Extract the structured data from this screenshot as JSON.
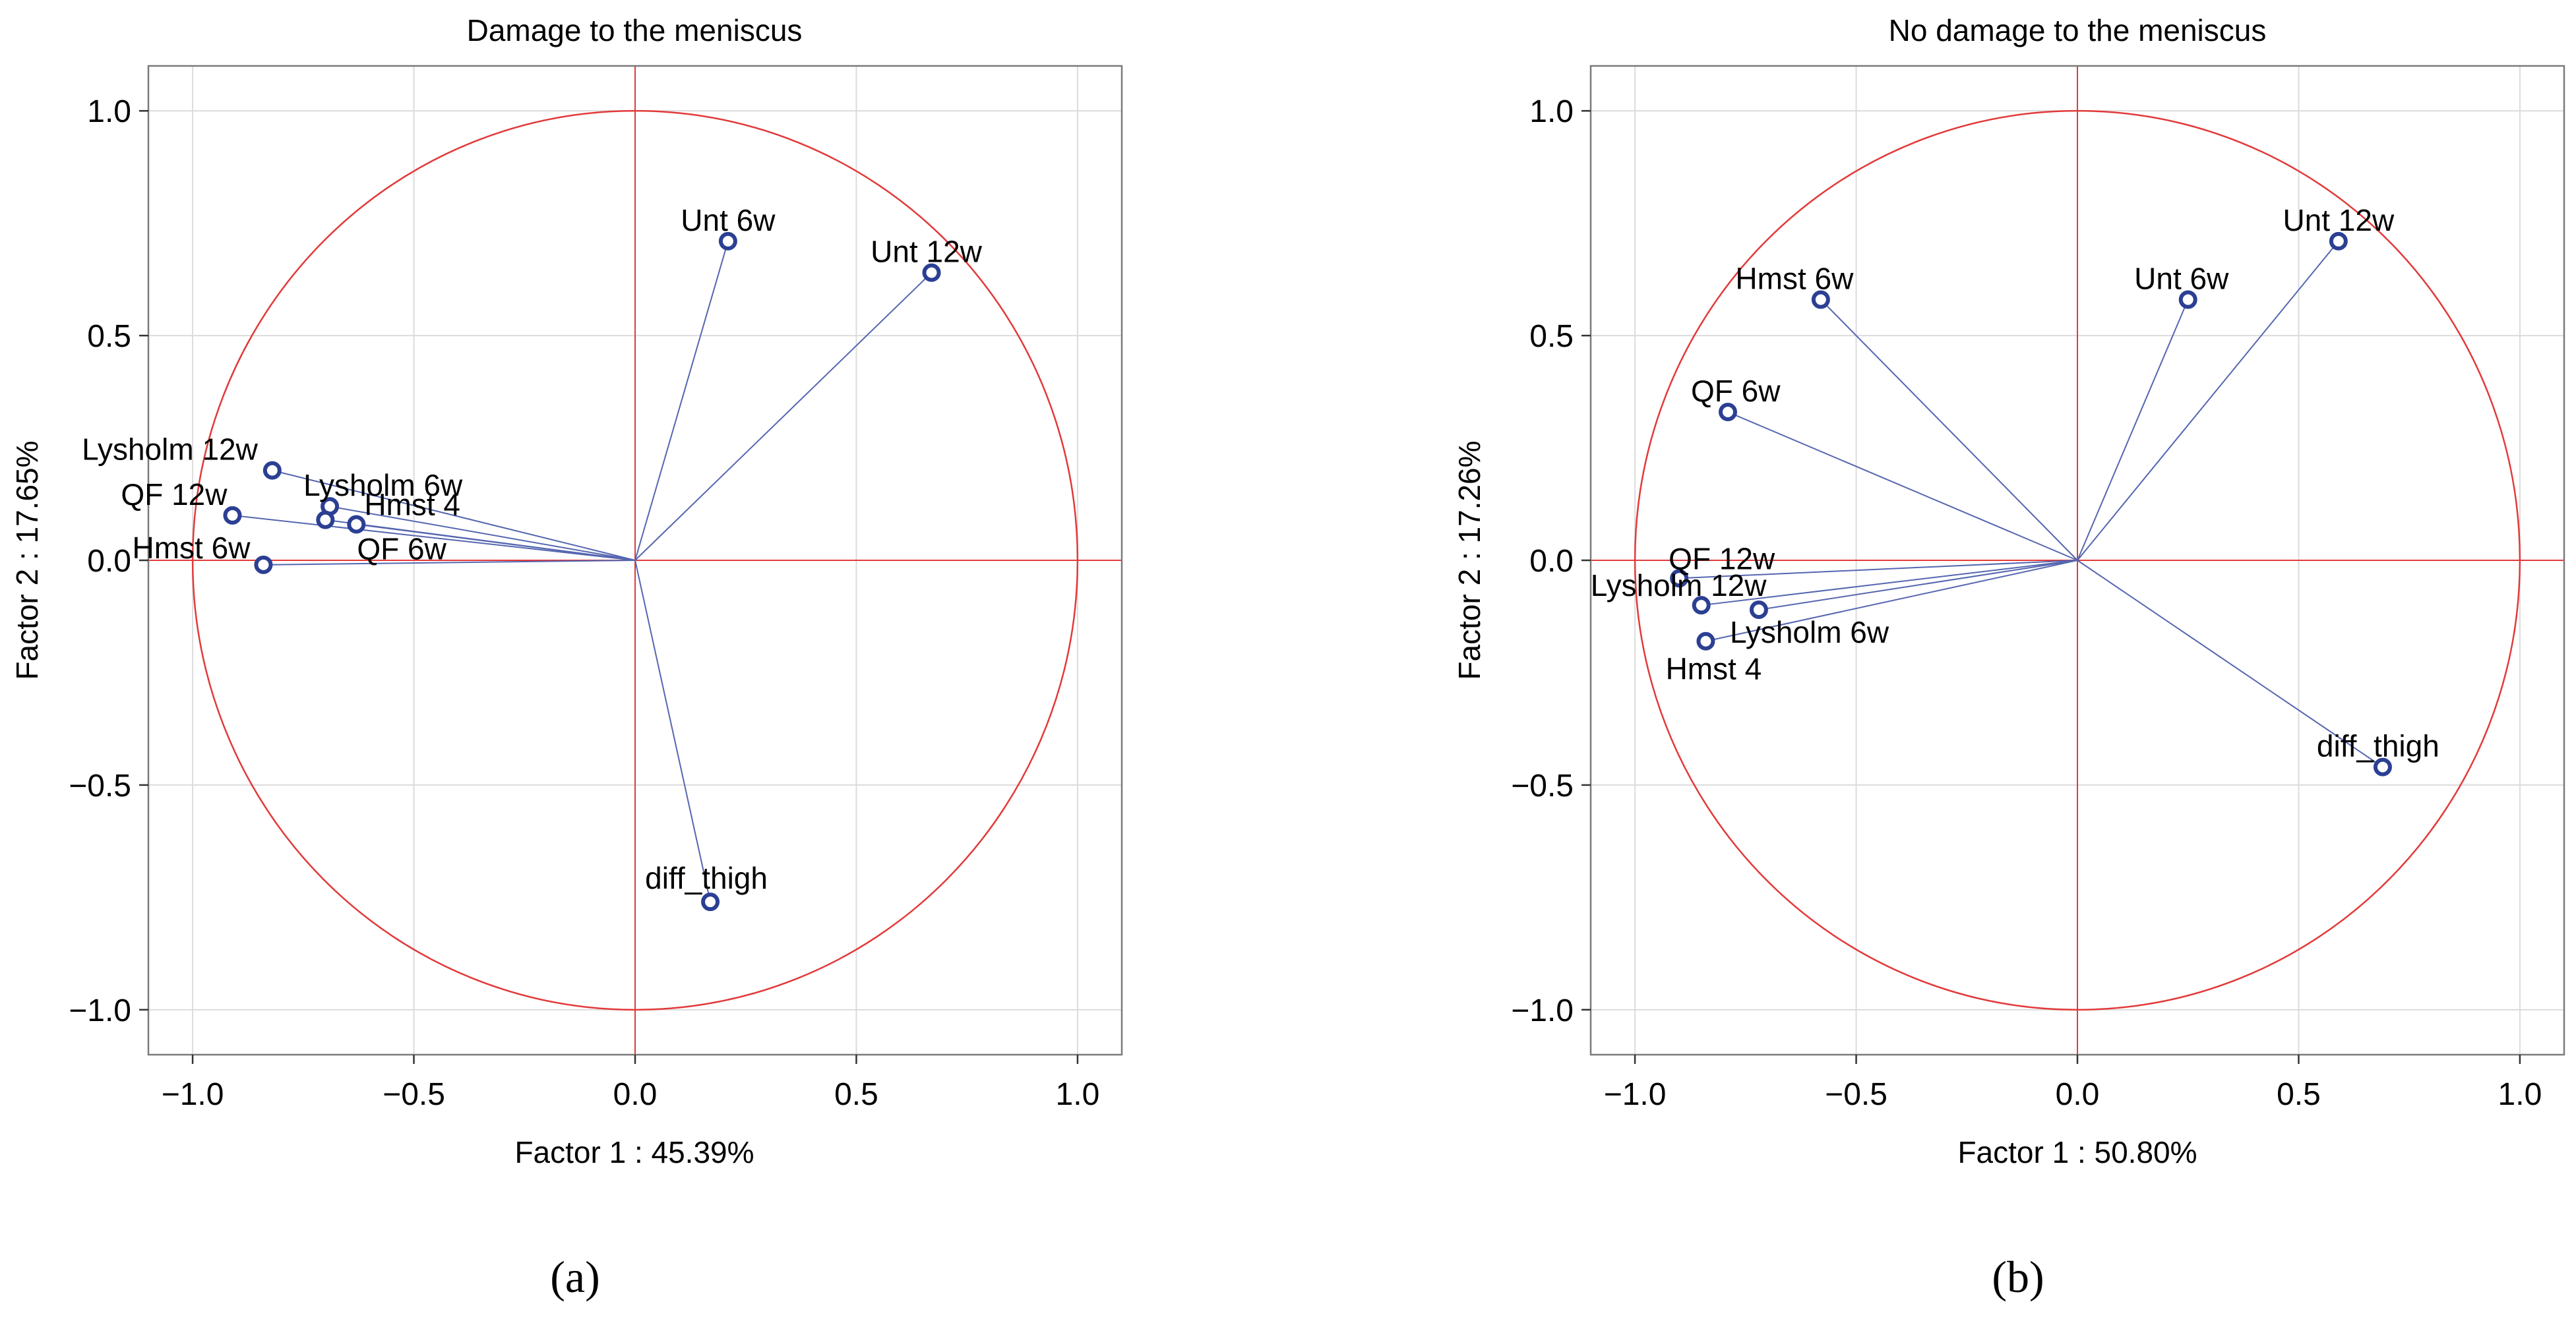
{
  "chart_data": [
    {
      "type": "scatter",
      "panel_label": "(a)",
      "title": "Damage to the meniscus",
      "xlabel": "Factor 1 : 45.39%",
      "ylabel": "Factor  2 : 17.65%",
      "xlim": [
        -1.1,
        1.1
      ],
      "ylim": [
        -1.1,
        1.1
      ],
      "xticks": [
        -1.0,
        -0.5,
        0.0,
        0.5,
        1.0
      ],
      "yticks": [
        -1.0,
        -0.5,
        0.0,
        0.5,
        1.0
      ],
      "xtick_labels": [
        "−1.0",
        "−0.5",
        "0.0",
        "0.5",
        "1.0"
      ],
      "ytick_labels": [
        "−1.0",
        "−0.5",
        "0.0",
        "0.5",
        "1.0"
      ],
      "grid": true,
      "unit_circle": true,
      "points": [
        {
          "label": "Unt 6w",
          "x": 0.21,
          "y": 0.71
        },
        {
          "label": "Unt 12w",
          "x": 0.67,
          "y": 0.64
        },
        {
          "label": "Lysholm 12w",
          "x": -0.82,
          "y": 0.2
        },
        {
          "label": "Lysholm 6w",
          "x": -0.69,
          "y": 0.12
        },
        {
          "label": "QF 12w",
          "x": -0.91,
          "y": 0.1
        },
        {
          "label": "Hmst 4",
          "x": -0.63,
          "y": 0.08
        },
        {
          "label": "QF 6w",
          "x": -0.7,
          "y": 0.09
        },
        {
          "label": "Hmst 6w",
          "x": -0.84,
          "y": -0.01
        },
        {
          "label": "diff_thigh",
          "x": 0.17,
          "y": -0.76
        }
      ]
    },
    {
      "type": "scatter",
      "panel_label": "(b)",
      "title": "No damage to the meniscus",
      "xlabel": "Factor 1 : 50.80%",
      "ylabel": "Factor 2 : 17.26%",
      "xlim": [
        -1.1,
        1.1
      ],
      "ylim": [
        -1.1,
        1.1
      ],
      "xticks": [
        -1.0,
        -0.5,
        0.0,
        0.5,
        1.0
      ],
      "yticks": [
        -1.0,
        -0.5,
        0.0,
        0.5,
        1.0
      ],
      "xtick_labels": [
        "−1.0",
        "−0.5",
        "0.0",
        "0.5",
        "1.0"
      ],
      "ytick_labels": [
        "−1.0",
        "−0.5",
        "0.0",
        "0.5",
        "1.0"
      ],
      "grid": true,
      "unit_circle": true,
      "points": [
        {
          "label": "Unt 12w",
          "x": 0.59,
          "y": 0.71
        },
        {
          "label": "Unt 6w",
          "x": 0.25,
          "y": 0.58
        },
        {
          "label": "Hmst 6w",
          "x": -0.58,
          "y": 0.58
        },
        {
          "label": "QF 6w",
          "x": -0.79,
          "y": 0.33
        },
        {
          "label": "QF 12w",
          "x": -0.9,
          "y": -0.04
        },
        {
          "label": "Lysholm 12w",
          "x": -0.85,
          "y": -0.1
        },
        {
          "label": "Lysholm 6w",
          "x": -0.72,
          "y": -0.11
        },
        {
          "label": "Hmst 4",
          "x": -0.84,
          "y": -0.18
        },
        {
          "label": "diff_thigh",
          "x": 0.69,
          "y": -0.46
        }
      ]
    }
  ]
}
